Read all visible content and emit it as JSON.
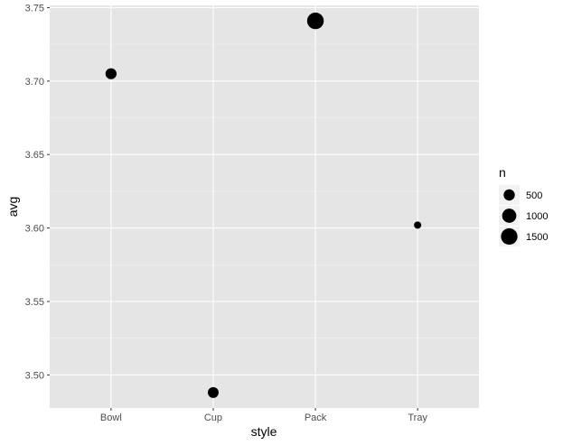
{
  "chart_data": {
    "type": "scatter",
    "xlabel": "style",
    "ylabel": "avg",
    "categories": [
      "Bowl",
      "Cup",
      "Pack",
      "Tray"
    ],
    "points": [
      {
        "x": "Bowl",
        "y": 3.705,
        "n": 480
      },
      {
        "x": "Cup",
        "y": 3.488,
        "n": 450
      },
      {
        "x": "Pack",
        "y": 3.741,
        "n": 1530
      },
      {
        "x": "Tray",
        "y": 3.602,
        "n": 105
      }
    ],
    "ylim": [
      3.4775,
      3.7515
    ],
    "y_ticks": [
      3.5,
      3.55,
      3.6,
      3.65,
      3.7,
      3.75
    ],
    "y_tick_labels": [
      "3.50",
      "3.55",
      "3.60",
      "3.65",
      "3.70",
      "3.75"
    ],
    "grid": true,
    "legend": {
      "title": "n",
      "placement": "right",
      "entries": [
        {
          "label": "500",
          "n": 500
        },
        {
          "label": "1000",
          "n": 1000
        },
        {
          "label": "1500",
          "n": 1500
        }
      ]
    },
    "colors": {
      "panel_background": "#e5e5e5",
      "grid_major": "#ffffff",
      "grid_minor": "#f2f2f2",
      "point": "#000000",
      "tick_label": "#4d4d4d"
    }
  }
}
